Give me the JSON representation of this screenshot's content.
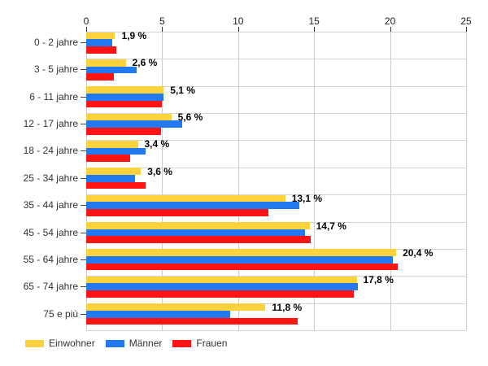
{
  "chart_data": {
    "type": "bar",
    "orientation": "horizontal",
    "title": "",
    "xlabel": "",
    "ylabel": "",
    "xlim": [
      0,
      25
    ],
    "x_ticks": [
      0,
      5,
      10,
      15,
      20,
      25
    ],
    "grid": true,
    "legend_position": "bottom",
    "categories": [
      "0 - 2 jahre",
      "3 - 5 jahre",
      "6 - 11 jahre",
      "12 - 17 jahre",
      "18 - 24 jahre",
      "25 - 34 jahre",
      "35 - 44 jahre",
      "45 - 54 jahre",
      "55 - 64 jahre",
      "65 - 74 jahre",
      "75 e più"
    ],
    "series": [
      {
        "name": "Einwohner",
        "color": "#FCD33C",
        "values": [
          1.9,
          2.6,
          5.1,
          5.6,
          3.4,
          3.6,
          13.1,
          14.7,
          20.4,
          17.8,
          11.8
        ]
      },
      {
        "name": "Männer",
        "color": "#2379F0",
        "values": [
          1.7,
          3.3,
          5.1,
          6.3,
          3.9,
          3.2,
          14.0,
          14.4,
          20.2,
          17.9,
          9.5
        ]
      },
      {
        "name": "Frauen",
        "color": "#FF1313",
        "values": [
          2.0,
          1.8,
          5.0,
          4.9,
          2.9,
          3.9,
          12.0,
          14.8,
          20.5,
          17.6,
          13.9
        ]
      }
    ],
    "bar_labels": [
      "1,9 %",
      "2,6 %",
      "5,1 %",
      "5,6 %",
      "3,4 %",
      "3,6 %",
      "13,1 %",
      "14,7 %",
      "20,4 %",
      "17,8 %",
      "11,8 %"
    ],
    "colors": {
      "grid_vertical": "#cccccc",
      "grid_horizontal": "#d4d4d4",
      "tick": "#333333",
      "axis_label": "#222222",
      "category_label": "#333333",
      "data_label": "#000000",
      "background": "#ffffff"
    }
  }
}
